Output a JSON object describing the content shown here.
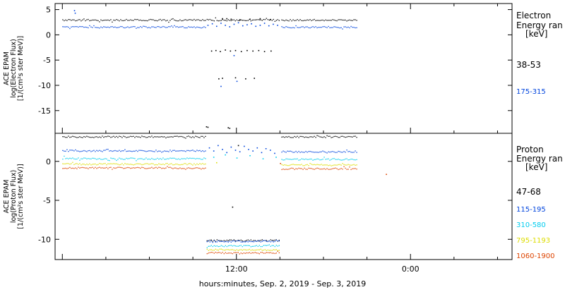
{
  "chart_data": [
    {
      "type": "scatter",
      "panel": "electron",
      "ylabel_lines": [
        "ACE EPAM",
        "log(Electron Flux)",
        "[1/(cm²s ster MeV)]"
      ],
      "yticks": [
        5,
        0,
        -5,
        -10,
        -15
      ],
      "ylim": [
        -19.5,
        6.2
      ],
      "legend_title_lines": [
        "Electron",
        "Energy ran",
        "[keV]"
      ],
      "series": [
        {
          "name": "38-53",
          "color": "#000000",
          "segments": [
            {
              "x0": 0.0,
              "x1": 9.85,
              "y": 3.0
            },
            {
              "x0": 9.95,
              "x1": 15.0,
              "y": 3.0
            },
            {
              "x0": 15.1,
              "x1": 20.35,
              "y": 3.0
            }
          ],
          "points": [
            [
              11.0,
              3.3
            ],
            [
              11.3,
              3.3
            ],
            [
              11.6,
              3.2
            ],
            [
              12.2,
              3.1
            ],
            [
              12.9,
              3.2
            ],
            [
              13.6,
              3.3
            ],
            [
              14.3,
              3.1
            ],
            [
              10.25,
              -3.1
            ],
            [
              10.55,
              -3.0
            ],
            [
              10.85,
              -3.2
            ],
            [
              11.2,
              -2.9
            ],
            [
              11.55,
              -3.1
            ],
            [
              11.9,
              -3.0
            ],
            [
              12.3,
              -3.2
            ],
            [
              12.7,
              -3.0
            ],
            [
              13.1,
              -3.1
            ],
            [
              13.5,
              -3.0
            ],
            [
              13.9,
              -3.2
            ],
            [
              14.35,
              -3.1
            ],
            [
              10.75,
              -8.6
            ],
            [
              11.0,
              -8.5
            ],
            [
              11.9,
              -8.4
            ],
            [
              12.6,
              -8.6
            ],
            [
              13.2,
              -8.5
            ],
            [
              9.9,
              -18.1
            ],
            [
              10.0,
              -18.2
            ],
            [
              11.4,
              -18.3
            ],
            [
              11.5,
              -18.4
            ]
          ]
        },
        {
          "name": "175-315",
          "color": "#0044dd",
          "segments": [
            {
              "x0": 0.0,
              "x1": 9.85,
              "y": 1.6
            },
            {
              "x0": 15.1,
              "x1": 20.35,
              "y": 1.6
            }
          ],
          "points": [
            [
              0.8,
              4.9
            ],
            [
              0.85,
              4.4
            ],
            [
              10.0,
              2.0
            ],
            [
              10.3,
              2.3
            ],
            [
              10.6,
              1.8
            ],
            [
              10.9,
              2.4
            ],
            [
              11.2,
              2.0
            ],
            [
              11.5,
              1.7
            ],
            [
              11.8,
              2.2
            ],
            [
              12.1,
              2.5
            ],
            [
              12.4,
              1.9
            ],
            [
              12.7,
              2.1
            ],
            [
              13.0,
              2.3
            ],
            [
              13.3,
              1.8
            ],
            [
              13.6,
              2.0
            ],
            [
              13.9,
              2.4
            ],
            [
              14.2,
              1.9
            ],
            [
              14.5,
              2.2
            ],
            [
              14.8,
              2.0
            ],
            [
              12.0,
              -9.1
            ],
            [
              10.9,
              -10.1
            ],
            [
              11.8,
              -4.0
            ]
          ]
        }
      ]
    },
    {
      "type": "scatter",
      "panel": "proton",
      "ylabel_lines": [
        "ACE EPAM",
        "log(Proton Flux)",
        "[1/(cm²s ster MeV)]"
      ],
      "yticks": [
        0,
        -5,
        -10
      ],
      "ylim": [
        -12.6,
        3.6
      ],
      "xlabel": "hours:minutes, Sep.  2, 2019 - Sep.  3, 2019",
      "x_tick_labels": [
        {
          "x": 12,
          "label": "12:00"
        },
        {
          "x": 24,
          "label": "0:00"
        }
      ],
      "xlim": [
        -0.5,
        31.0
      ],
      "legend_title_lines": [
        "Proton",
        "Energy ran",
        "[keV]"
      ],
      "series": [
        {
          "name": "47-68",
          "color": "#000000",
          "segments": [
            {
              "x0": 0.0,
              "x1": 9.85,
              "y": 3.2
            },
            {
              "x0": 15.1,
              "x1": 20.35,
              "y": 3.2
            },
            {
              "x0": 9.95,
              "x1": 15.0,
              "y": -10.1
            }
          ],
          "points": [
            [
              11.7,
              -5.8
            ],
            [
              12.1,
              2.1
            ]
          ]
        },
        {
          "name": "115-195",
          "color": "#0044dd",
          "segments": [
            {
              "x0": 0.0,
              "x1": 9.85,
              "y": 1.4
            },
            {
              "x0": 15.1,
              "x1": 20.35,
              "y": 1.3
            },
            {
              "x0": 9.95,
              "x1": 15.0,
              "y": -10.2
            }
          ],
          "points": [
            [
              10.1,
              1.8
            ],
            [
              10.4,
              1.4
            ],
            [
              10.7,
              2.1
            ],
            [
              11.0,
              1.6
            ],
            [
              11.3,
              1.2
            ],
            [
              11.6,
              1.9
            ],
            [
              11.9,
              1.5
            ],
            [
              12.2,
              1.3
            ],
            [
              12.5,
              2.0
            ],
            [
              12.8,
              1.6
            ],
            [
              13.1,
              1.4
            ],
            [
              13.4,
              1.8
            ],
            [
              13.7,
              1.2
            ],
            [
              14.0,
              1.7
            ],
            [
              14.3,
              1.5
            ],
            [
              14.6,
              1.1
            ]
          ]
        },
        {
          "name": "310-580",
          "color": "#00ccee",
          "segments": [
            {
              "x0": 0.0,
              "x1": 9.85,
              "y": 0.4
            },
            {
              "x0": 15.1,
              "x1": 20.35,
              "y": 0.3
            },
            {
              "x0": 9.95,
              "x1": 15.0,
              "y": -10.8
            }
          ],
          "points": [
            [
              10.4,
              0.6
            ],
            [
              11.2,
              0.9
            ],
            [
              12.0,
              0.5
            ],
            [
              12.9,
              0.8
            ],
            [
              13.8,
              0.4
            ],
            [
              14.7,
              0.6
            ]
          ]
        },
        {
          "name": "795-1193",
          "color": "#dddd00",
          "segments": [
            {
              "x0": 0.0,
              "x1": 9.85,
              "y": -0.3
            },
            {
              "x0": 15.1,
              "x1": 20.35,
              "y": -0.4
            },
            {
              "x0": 9.95,
              "x1": 15.0,
              "y": -11.3
            }
          ],
          "points": [
            [
              10.6,
              -0.1
            ]
          ]
        },
        {
          "name": "1060-1900",
          "color": "#dd4400",
          "segments": [
            {
              "x0": 0.0,
              "x1": 9.85,
              "y": -0.8
            },
            {
              "x0": 15.1,
              "x1": 20.35,
              "y": -0.9
            },
            {
              "x0": 9.95,
              "x1": 15.0,
              "y": -11.7
            }
          ],
          "points": [
            [
              22.3,
              -1.6
            ],
            [
              15.0,
              -0.2
            ]
          ]
        }
      ]
    }
  ]
}
